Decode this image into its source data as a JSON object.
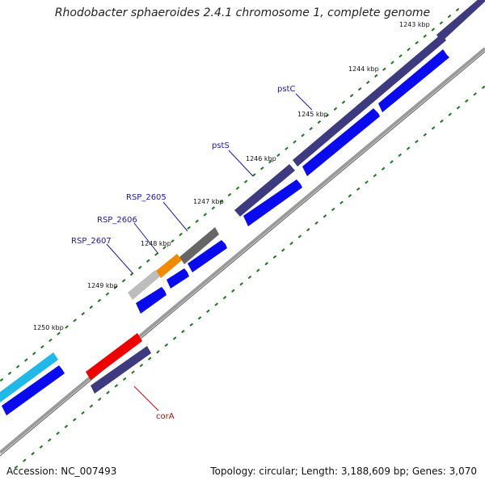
{
  "title": "Rhodobacter sphaeroides 2.4.1 chromosome 1, complete genome",
  "footer": {
    "accession": "Accession: NC_007493",
    "summary": "Topology: circular; Length: 3,188,609 bp; Genes: 3,070"
  },
  "ticks": [
    {
      "label": "1243 kbp"
    },
    {
      "label": "1244 kbp"
    },
    {
      "label": "1245 kbp"
    },
    {
      "label": "1246 kbp"
    },
    {
      "label": "1247 kbp"
    },
    {
      "label": "1248 kbp"
    },
    {
      "label": "1249 kbp"
    },
    {
      "label": "1250 kbp"
    }
  ],
  "gene_labels": [
    {
      "label": "pstC",
      "color": "#1a1aa6"
    },
    {
      "label": "pstS",
      "color": "#1a1aa6"
    },
    {
      "label": "RSP_2605",
      "color": "#1a1aa6"
    },
    {
      "label": "RSP_2606",
      "color": "#1a1aa6"
    },
    {
      "label": "RSP_2607",
      "color": "#1a1aa6"
    },
    {
      "label": "corA",
      "color": "#cc0000"
    }
  ],
  "colors": {
    "cds_forward": "#0a0aee",
    "feature_slate": "#3d3a80",
    "feature_gray": "#666666",
    "feature_lightgray": "#bdbdbd",
    "feature_orange": "#f08a00",
    "feature_cyan": "#20b8e8",
    "feature_red": "#ee0000",
    "backbone": "#7a7a7a",
    "tick_dots": "#1a7a1a"
  }
}
